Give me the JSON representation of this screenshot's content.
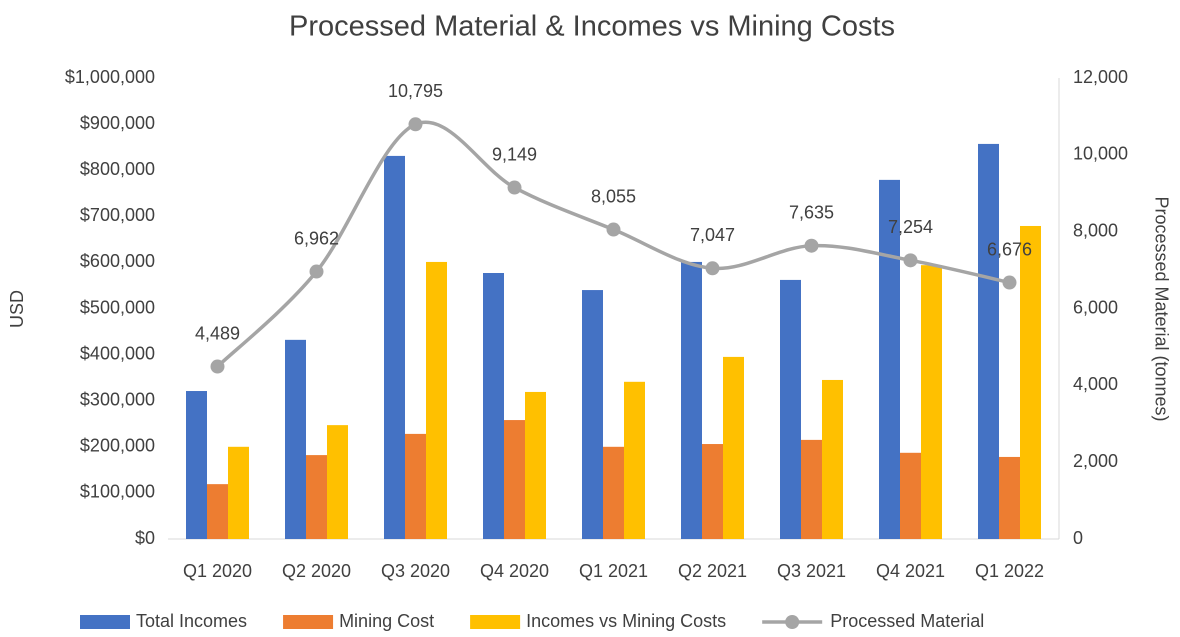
{
  "chart_data": {
    "type": "bar_line",
    "title": "Processed Material & Incomes vs Mining Costs",
    "y_label": "USD",
    "y2_label": "Processed Material (tonnes)",
    "categories": [
      "Q1 2020",
      "Q2 2020",
      "Q3 2020",
      "Q4 2020",
      "Q1 2021",
      "Q2 2021",
      "Q3 2021",
      "Q4 2021",
      "Q1 2022"
    ],
    "series": [
      {
        "name": "Total Incomes",
        "type": "bar",
        "color": "#4472c4",
        "values": [
          321000,
          432000,
          831000,
          577000,
          540000,
          601000,
          562000,
          779000,
          857000
        ]
      },
      {
        "name": "Mining Cost",
        "type": "bar",
        "color": "#ed7d31",
        "values": [
          119000,
          182000,
          228000,
          258000,
          200000,
          206000,
          215000,
          187000,
          178000
        ]
      },
      {
        "name": "Incomes vs Mining Costs",
        "type": "bar",
        "color": "#ffc000",
        "values": [
          200000,
          247000,
          601000,
          319000,
          341000,
          395000,
          345000,
          594000,
          679000
        ]
      },
      {
        "name": "Processed Material",
        "type": "line",
        "axis": "y2",
        "color": "#a5a5a5",
        "values": [
          4489,
          6962,
          10795,
          9149,
          8055,
          7047,
          7635,
          7254,
          6676
        ],
        "value_labels": [
          "4,489",
          "6,962",
          "10,795",
          "9,149",
          "8,055",
          "7,047",
          "7,635",
          "7,254",
          "6,676"
        ]
      }
    ],
    "ylim": [
      0,
      1000000
    ],
    "yticks": [
      {
        "value": 0,
        "label": "$0"
      },
      {
        "value": 100000,
        "label": "$100,000"
      },
      {
        "value": 200000,
        "label": "$200,000"
      },
      {
        "value": 300000,
        "label": "$300,000"
      },
      {
        "value": 400000,
        "label": "$400,000"
      },
      {
        "value": 500000,
        "label": "$500,000"
      },
      {
        "value": 600000,
        "label": "$600,000"
      },
      {
        "value": 700000,
        "label": "$700,000"
      },
      {
        "value": 800000,
        "label": "$800,000"
      },
      {
        "value": 900000,
        "label": "$900,000"
      },
      {
        "value": 1000000,
        "label": "$1,000,000"
      }
    ],
    "y2lim": [
      0,
      12000
    ],
    "y2ticks": [
      0,
      {
        "value": 2000,
        "label": "2,000"
      },
      {
        "value": 4000,
        "label": "4,000"
      },
      {
        "value": 6000,
        "label": "6,000"
      },
      {
        "value": 8000,
        "label": "8,000"
      },
      {
        "value": 10000,
        "label": "10,000"
      },
      {
        "value": 12000,
        "label": "12,000"
      }
    ],
    "legend": "bottom"
  }
}
